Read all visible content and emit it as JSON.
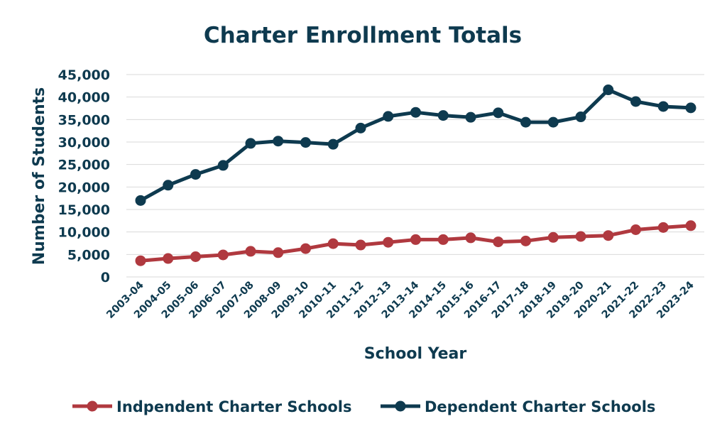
{
  "chart_data": {
    "type": "line",
    "title": "Charter Enrollment Totals",
    "xlabel": "School Year",
    "ylabel": "Number of Students",
    "ylim": [
      0,
      45000
    ],
    "yticks": [
      "0",
      "5,000",
      "10,000",
      "15,000",
      "20,000",
      "25,000",
      "30,000",
      "35,000",
      "40,000",
      "45,000"
    ],
    "yticks_values": [
      0,
      5000,
      10000,
      15000,
      20000,
      25000,
      30000,
      35000,
      40000,
      45000
    ],
    "grid": true,
    "legend_position": "bottom",
    "categories": [
      "2003-04",
      "2004-05",
      "2005-06",
      "2006-07",
      "2007-08",
      "2008-09",
      "2009-10",
      "2010-11",
      "2011-12",
      "2012-13",
      "2013-14",
      "2014-15",
      "2015-16",
      "2016-17",
      "2017-18",
      "2018-19",
      "2019-20",
      "2020-21",
      "2021-22",
      "2022-23",
      "2023-24"
    ],
    "series": [
      {
        "name": "Indpendent Charter Schools",
        "color": "#b0393f",
        "values": [
          3600,
          4100,
          4500,
          4900,
          5700,
          5400,
          6300,
          7400,
          7100,
          7700,
          8300,
          8300,
          8700,
          7800,
          8000,
          8800,
          9000,
          9200,
          10500,
          11000,
          11400
        ]
      },
      {
        "name": "Dependent Charter Schools",
        "color": "#0e3a4f",
        "values": [
          17000,
          20400,
          22800,
          24800,
          29700,
          30200,
          29900,
          29500,
          33100,
          35700,
          36600,
          35900,
          35500,
          36500,
          34400,
          34400,
          35600,
          41600,
          39000,
          37900,
          37600
        ]
      }
    ]
  }
}
